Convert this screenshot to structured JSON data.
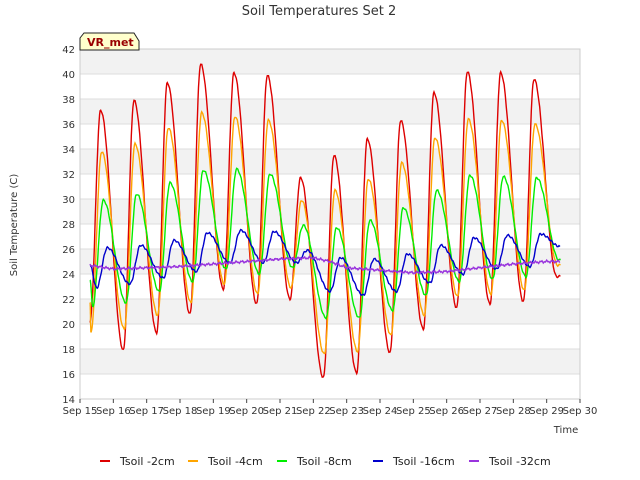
{
  "chart_data": {
    "type": "line",
    "title": "Soil Temperatures Set 2",
    "xlabel": "Time",
    "ylabel": "Soil Temperature (C)",
    "site_badge": "VR_met",
    "ylim": [
      14,
      42
    ],
    "yticks": [
      14,
      16,
      18,
      20,
      22,
      24,
      26,
      28,
      30,
      32,
      34,
      36,
      38,
      40,
      42
    ],
    "xlim": [
      15,
      30
    ],
    "xtick_labels": [
      "Sep 15",
      "Sep 16",
      "Sep 17",
      "Sep 18",
      "Sep 19",
      "Sep 20",
      "Sep 21",
      "Sep 22",
      "Sep 23",
      "Sep 24",
      "Sep 25",
      "Sep 26",
      "Sep 27",
      "Sep 28",
      "Sep 29",
      "Sep 30"
    ],
    "data_start_day": 15.3,
    "data_end_day": 29.4,
    "grid": true,
    "legend_position": "bottom",
    "series": [
      {
        "name": "Tsoil -2cm",
        "color": "#dd0000",
        "daily_min": [
          17.9,
          17.9,
          19.3,
          20.8,
          22.8,
          21.6,
          22.0,
          15.7,
          16.1,
          17.7,
          19.6,
          21.3,
          21.6,
          21.8,
          23.8
        ],
        "daily_max": [
          37.1,
          37.9,
          39.3,
          40.8,
          40.1,
          39.9,
          31.7,
          33.5,
          34.8,
          36.3,
          38.5,
          40.2,
          40.1,
          39.6,
          39.6
        ],
        "start_value": 20.2,
        "end_value": 23.8
      },
      {
        "name": "Tsoil -4cm",
        "color": "#ffa500",
        "daily_min": [
          19.3,
          19.6,
          20.7,
          21.7,
          23.2,
          22.4,
          22.9,
          17.6,
          17.8,
          19.1,
          20.7,
          22.2,
          22.4,
          22.7,
          24.7
        ],
        "daily_max": [
          33.8,
          34.4,
          35.7,
          36.9,
          36.6,
          36.3,
          29.9,
          30.7,
          31.6,
          32.9,
          34.9,
          36.4,
          36.3,
          36.0,
          36.0
        ],
        "start_value": 21.8,
        "end_value": 24.7
      },
      {
        "name": "Tsoil -8cm",
        "color": "#00ee00",
        "daily_min": [
          21.4,
          21.7,
          22.6,
          23.4,
          24.4,
          24.0,
          24.5,
          20.5,
          20.5,
          21.1,
          22.3,
          23.4,
          23.6,
          23.8,
          25.1
        ],
        "daily_max": [
          29.9,
          30.4,
          31.3,
          32.3,
          32.4,
          32.0,
          27.9,
          27.7,
          28.3,
          29.3,
          30.7,
          31.9,
          31.8,
          31.7,
          31.7
        ],
        "start_value": 23.6,
        "end_value": 25.1
      },
      {
        "name": "Tsoil -16cm",
        "color": "#0000cc",
        "daily_min": [
          22.9,
          23.2,
          23.7,
          24.2,
          24.9,
          24.9,
          24.9,
          22.6,
          22.3,
          22.6,
          23.3,
          24.0,
          24.4,
          24.6,
          25.0
        ],
        "daily_max": [
          26.1,
          26.3,
          26.7,
          27.3,
          27.5,
          27.4,
          25.9,
          25.3,
          25.2,
          25.6,
          26.3,
          26.9,
          27.1,
          27.2,
          27.2
        ],
        "start_value": 24.7,
        "end_value": 26.2
      },
      {
        "name": "Tsoil -32cm",
        "color": "#9933dd",
        "trend_days": [
          15.3,
          16,
          17,
          18,
          19,
          20,
          21,
          22,
          22.5,
          23,
          24,
          25,
          26,
          27,
          28,
          29,
          29.4
        ],
        "trend_values": [
          24.7,
          24.4,
          24.5,
          24.6,
          24.8,
          25.0,
          25.2,
          25.3,
          25.0,
          24.5,
          24.3,
          24.1,
          24.2,
          24.5,
          24.8,
          25.0,
          25.0
        ]
      }
    ]
  }
}
